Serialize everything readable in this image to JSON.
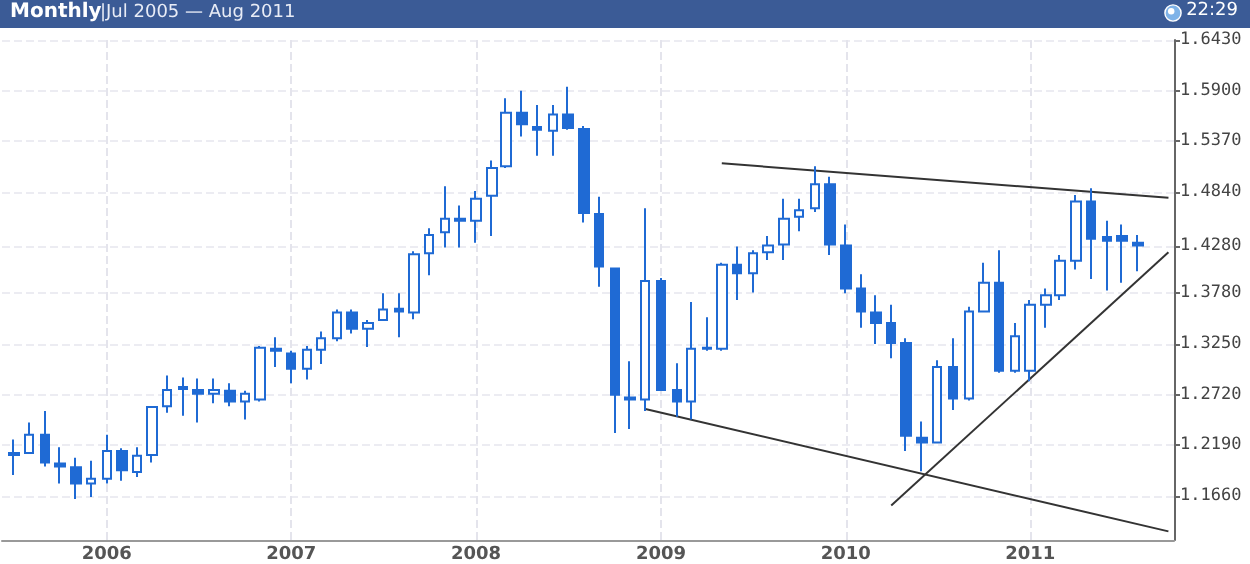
{
  "chart_data": {
    "type": "candlestick",
    "title": "Monthly",
    "subtitle": "|Jul 2005 — Aug 2011",
    "annotations": [
      "22:29"
    ],
    "color": "#1f6ad4",
    "grid": true,
    "x": [
      "2005-07",
      "2005-08",
      "2005-09",
      "2005-10",
      "2005-11",
      "2005-12",
      "2006-01",
      "2006-02",
      "2006-03",
      "2006-04",
      "2006-05",
      "2006-06",
      "2006-07",
      "2006-08",
      "2006-09",
      "2006-10",
      "2006-11",
      "2006-12",
      "2007-01",
      "2007-02",
      "2007-03",
      "2007-04",
      "2007-05",
      "2007-06",
      "2007-07",
      "2007-08",
      "2007-09",
      "2007-10",
      "2007-11",
      "2007-12",
      "2008-01",
      "2008-02",
      "2008-03",
      "2008-04",
      "2008-05",
      "2008-06",
      "2008-07",
      "2008-08",
      "2008-09",
      "2008-10",
      "2008-11",
      "2008-12",
      "2009-01",
      "2009-02",
      "2009-03",
      "2009-04",
      "2009-05",
      "2009-06",
      "2009-07",
      "2009-08",
      "2009-09",
      "2009-10",
      "2009-11",
      "2009-12",
      "2010-01",
      "2010-02",
      "2010-03",
      "2010-04",
      "2010-05",
      "2010-06",
      "2010-07",
      "2010-08",
      "2010-09",
      "2010-10",
      "2010-11",
      "2010-12",
      "2011-01",
      "2011-02",
      "2011-03",
      "2011-04",
      "2011-05",
      "2011-06",
      "2011-07",
      "2011-08"
    ],
    "ohlc": [
      [
        1.211,
        1.225,
        1.188,
        1.209
      ],
      [
        1.211,
        1.243,
        1.211,
        1.23
      ],
      [
        1.23,
        1.255,
        1.197,
        1.201
      ],
      [
        1.2,
        1.217,
        1.179,
        1.197
      ],
      [
        1.196,
        1.206,
        1.163,
        1.179
      ],
      [
        1.179,
        1.203,
        1.165,
        1.184
      ],
      [
        1.184,
        1.23,
        1.179,
        1.213
      ],
      [
        1.213,
        1.216,
        1.182,
        1.193
      ],
      [
        1.191,
        1.217,
        1.186,
        1.208
      ],
      [
        1.209,
        1.26,
        1.201,
        1.259
      ],
      [
        1.26,
        1.292,
        1.253,
        1.277
      ],
      [
        1.28,
        1.29,
        1.25,
        1.278
      ],
      [
        1.277,
        1.289,
        1.243,
        1.273
      ],
      [
        1.273,
        1.289,
        1.263,
        1.277
      ],
      [
        1.276,
        1.284,
        1.26,
        1.265
      ],
      [
        1.265,
        1.276,
        1.246,
        1.273
      ],
      [
        1.267,
        1.323,
        1.265,
        1.321
      ],
      [
        1.32,
        1.332,
        1.301,
        1.318
      ],
      [
        1.315,
        1.318,
        1.284,
        1.299
      ],
      [
        1.299,
        1.323,
        1.288,
        1.319
      ],
      [
        1.319,
        1.338,
        1.304,
        1.331
      ],
      [
        1.331,
        1.361,
        1.328,
        1.358
      ],
      [
        1.358,
        1.361,
        1.336,
        1.341
      ],
      [
        1.341,
        1.35,
        1.322,
        1.347
      ],
      [
        1.35,
        1.378,
        1.35,
        1.361
      ],
      [
        1.362,
        1.378,
        1.332,
        1.359
      ],
      [
        1.358,
        1.422,
        1.351,
        1.419
      ],
      [
        1.42,
        1.446,
        1.397,
        1.439
      ],
      [
        1.442,
        1.49,
        1.426,
        1.456
      ],
      [
        1.454,
        1.47,
        1.426,
        1.456
      ],
      [
        1.454,
        1.485,
        1.431,
        1.477
      ],
      [
        1.48,
        1.517,
        1.438,
        1.509
      ],
      [
        1.511,
        1.582,
        1.509,
        1.567
      ],
      [
        1.567,
        1.59,
        1.542,
        1.555
      ],
      [
        1.552,
        1.575,
        1.522,
        1.549
      ],
      [
        1.548,
        1.575,
        1.522,
        1.565
      ],
      [
        1.565,
        1.594,
        1.549,
        1.551
      ],
      [
        1.55,
        1.553,
        1.452,
        1.462
      ],
      [
        1.461,
        1.479,
        1.385,
        1.406
      ],
      [
        1.404,
        1.404,
        1.232,
        1.272
      ],
      [
        1.269,
        1.307,
        1.236,
        1.267
      ],
      [
        1.267,
        1.467,
        1.255,
        1.391
      ],
      [
        1.391,
        1.394,
        1.276,
        1.277
      ],
      [
        1.277,
        1.305,
        1.249,
        1.265
      ],
      [
        1.265,
        1.369,
        1.246,
        1.32
      ],
      [
        1.32,
        1.353,
        1.318,
        1.321
      ],
      [
        1.32,
        1.41,
        1.318,
        1.408
      ],
      [
        1.408,
        1.427,
        1.371,
        1.399
      ],
      [
        1.399,
        1.423,
        1.379,
        1.42
      ],
      [
        1.421,
        1.438,
        1.413,
        1.428
      ],
      [
        1.429,
        1.477,
        1.413,
        1.456
      ],
      [
        1.458,
        1.477,
        1.443,
        1.465
      ],
      [
        1.467,
        1.511,
        1.463,
        1.492
      ],
      [
        1.492,
        1.5,
        1.418,
        1.429
      ],
      [
        1.428,
        1.45,
        1.378,
        1.383
      ],
      [
        1.383,
        1.398,
        1.342,
        1.359
      ],
      [
        1.358,
        1.376,
        1.325,
        1.347
      ],
      [
        1.347,
        1.366,
        1.31,
        1.326
      ],
      [
        1.326,
        1.331,
        1.213,
        1.229
      ],
      [
        1.227,
        1.244,
        1.192,
        1.222
      ],
      [
        1.222,
        1.308,
        1.221,
        1.301
      ],
      [
        1.301,
        1.331,
        1.256,
        1.268
      ],
      [
        1.268,
        1.364,
        1.266,
        1.359
      ],
      [
        1.359,
        1.41,
        1.358,
        1.389
      ],
      [
        1.389,
        1.423,
        1.295,
        1.297
      ],
      [
        1.297,
        1.347,
        1.295,
        1.333
      ],
      [
        1.297,
        1.371,
        1.286,
        1.366
      ],
      [
        1.366,
        1.383,
        1.342,
        1.376
      ],
      [
        1.376,
        1.418,
        1.371,
        1.412
      ],
      [
        1.412,
        1.481,
        1.403,
        1.474
      ],
      [
        1.474,
        1.488,
        1.393,
        1.435
      ],
      [
        1.437,
        1.454,
        1.381,
        1.433
      ],
      [
        1.438,
        1.45,
        1.389,
        1.433
      ],
      [
        1.431,
        1.439,
        1.401,
        1.428
      ]
    ],
    "series": [
      {
        "type": "line",
        "color": "#333333",
        "x": [
          "2009-05",
          "2011-10"
        ],
        "values": [
          1.514,
          1.478
        ]
      },
      {
        "type": "line",
        "color": "#333333",
        "x": [
          "2008-12",
          "2011-10"
        ],
        "values": [
          1.257,
          1.129
        ]
      },
      {
        "type": "line",
        "color": "#333333",
        "x": [
          "2010-04",
          "2011-10"
        ],
        "values": [
          1.156,
          1.421
        ]
      }
    ],
    "marker": "none",
    "xlim": [
      "2005-06-08",
      "2011-10-12"
    ],
    "xticks": [
      {
        "value": "2006-01",
        "label": "2006"
      },
      {
        "value": "2007-01",
        "label": "2007"
      },
      {
        "value": "2008-01",
        "label": "2008"
      },
      {
        "value": "2009-01",
        "label": "2009"
      },
      {
        "value": "2010-01",
        "label": "2010"
      },
      {
        "value": "2011-01",
        "label": "2011"
      }
    ],
    "ylim": [
      1.12,
      1.643
    ],
    "yticks": [
      {
        "value": 1.166,
        "label": "1.1660"
      },
      {
        "value": 1.219,
        "label": "1.2190"
      },
      {
        "value": 1.272,
        "label": "1.2720"
      },
      {
        "value": 1.325,
        "label": "1.3250"
      },
      {
        "value": 1.378,
        "label": "1.3780"
      },
      {
        "value": 1.428,
        "label": "1.4280"
      },
      {
        "value": 1.484,
        "label": "1.4840"
      },
      {
        "value": 1.537,
        "label": "1.5370"
      },
      {
        "value": 1.59,
        "label": "1.5900"
      },
      {
        "value": 1.643,
        "label": "1.6430"
      }
    ]
  }
}
